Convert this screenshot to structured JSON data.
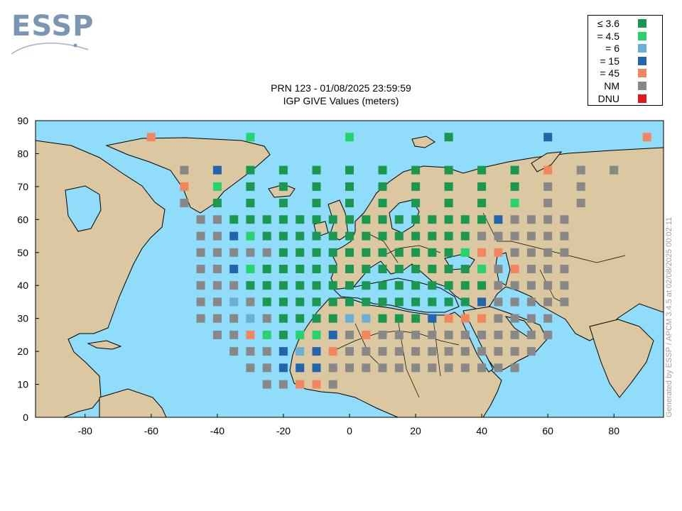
{
  "logo": {
    "text": "ESSP"
  },
  "title": {
    "line1": "PRN 123 - 01/08/2025 23:59:59",
    "line2": "IGP GIVE Values (meters)"
  },
  "credit": "Generated by ESSP / APCM 3.4.5 at 02/08/2025 00:02:11",
  "colors": {
    "ocean": "#8fdcfb",
    "land": "#dbc8a0",
    "border": "#000000"
  },
  "legend": [
    {
      "key": "A",
      "label": "≤ 3.6",
      "color": "#1a9850"
    },
    {
      "key": "B",
      "label": "= 4.5",
      "color": "#27d36d"
    },
    {
      "key": "C",
      "label": "= 6",
      "color": "#6baed6"
    },
    {
      "key": "D",
      "label": "= 15",
      "color": "#2166ac"
    },
    {
      "key": "E",
      "label": "= 45",
      "color": "#f4865e"
    },
    {
      "key": "N",
      "label": "NM",
      "color": "#888888"
    },
    {
      "key": "U",
      "label": "DNU",
      "color": "#e31a1c"
    }
  ],
  "map_data": {
    "lon_range": [
      -95,
      95
    ],
    "lat_range": [
      0,
      90
    ],
    "x_ticks": [
      -80,
      -60,
      -40,
      -20,
      0,
      20,
      40,
      60,
      80
    ],
    "y_ticks": [
      0,
      10,
      20,
      30,
      40,
      50,
      60,
      70,
      80,
      90
    ],
    "igps": [
      {
        "lat": 85,
        "cells": [
          [
            -60,
            "E"
          ],
          [
            -30,
            "B"
          ],
          [
            0,
            "B"
          ],
          [
            30,
            "A"
          ],
          [
            60,
            "D"
          ],
          [
            90,
            "E"
          ]
        ]
      },
      {
        "lat": 75,
        "cells": [
          [
            -50,
            "N"
          ],
          [
            -40,
            "D"
          ],
          [
            -30,
            "A"
          ],
          [
            -20,
            "A"
          ],
          [
            -10,
            "A"
          ],
          [
            0,
            "A"
          ],
          [
            10,
            "A"
          ],
          [
            20,
            "A"
          ],
          [
            30,
            "A"
          ],
          [
            40,
            "A"
          ],
          [
            50,
            "A"
          ],
          [
            60,
            "E"
          ],
          [
            70,
            "N"
          ],
          [
            80,
            "N"
          ]
        ]
      },
      {
        "lat": 70,
        "cells": [
          [
            -50,
            "E"
          ],
          [
            -40,
            "B"
          ],
          [
            -30,
            "A"
          ],
          [
            -20,
            "A"
          ],
          [
            -10,
            "A"
          ],
          [
            0,
            "A"
          ],
          [
            10,
            "A"
          ],
          [
            20,
            "A"
          ],
          [
            30,
            "A"
          ],
          [
            40,
            "A"
          ],
          [
            50,
            "A"
          ],
          [
            60,
            "N"
          ],
          [
            70,
            "N"
          ]
        ]
      },
      {
        "lat": 65,
        "cells": [
          [
            -50,
            "N"
          ],
          [
            -40,
            "A"
          ],
          [
            -30,
            "A"
          ],
          [
            -20,
            "A"
          ],
          [
            -10,
            "A"
          ],
          [
            0,
            "A"
          ],
          [
            10,
            "A"
          ],
          [
            20,
            "A"
          ],
          [
            30,
            "A"
          ],
          [
            40,
            "A"
          ],
          [
            50,
            "B"
          ],
          [
            60,
            "N"
          ],
          [
            70,
            "N"
          ]
        ]
      },
      {
        "lat": 60,
        "cells": [
          [
            -45,
            "N"
          ],
          [
            -40,
            "N"
          ],
          [
            -35,
            "A"
          ],
          [
            -30,
            "A"
          ],
          [
            -25,
            "A"
          ],
          [
            -20,
            "A"
          ],
          [
            -15,
            "A"
          ],
          [
            -10,
            "A"
          ],
          [
            -5,
            "A"
          ],
          [
            0,
            "A"
          ],
          [
            5,
            "A"
          ],
          [
            10,
            "A"
          ],
          [
            15,
            "A"
          ],
          [
            20,
            "A"
          ],
          [
            25,
            "A"
          ],
          [
            30,
            "A"
          ],
          [
            35,
            "A"
          ],
          [
            40,
            "A"
          ],
          [
            45,
            "D"
          ],
          [
            50,
            "N"
          ],
          [
            55,
            "N"
          ],
          [
            60,
            "N"
          ],
          [
            65,
            "N"
          ]
        ]
      },
      {
        "lat": 55,
        "cells": [
          [
            -45,
            "N"
          ],
          [
            -40,
            "N"
          ],
          [
            -35,
            "D"
          ],
          [
            -30,
            "B"
          ],
          [
            -25,
            "A"
          ],
          [
            -20,
            "A"
          ],
          [
            -15,
            "A"
          ],
          [
            -10,
            "A"
          ],
          [
            -5,
            "A"
          ],
          [
            0,
            "A"
          ],
          [
            5,
            "A"
          ],
          [
            10,
            "A"
          ],
          [
            15,
            "A"
          ],
          [
            20,
            "A"
          ],
          [
            25,
            "A"
          ],
          [
            30,
            "A"
          ],
          [
            35,
            "A"
          ],
          [
            40,
            "N"
          ],
          [
            45,
            "N"
          ],
          [
            50,
            "N"
          ],
          [
            55,
            "N"
          ],
          [
            60,
            "N"
          ],
          [
            65,
            "N"
          ]
        ]
      },
      {
        "lat": 50,
        "cells": [
          [
            -45,
            "N"
          ],
          [
            -40,
            "N"
          ],
          [
            -35,
            "N"
          ],
          [
            -30,
            "N"
          ],
          [
            -25,
            "N"
          ],
          [
            -20,
            "A"
          ],
          [
            -15,
            "A"
          ],
          [
            -10,
            "A"
          ],
          [
            -5,
            "A"
          ],
          [
            0,
            "A"
          ],
          [
            5,
            "A"
          ],
          [
            10,
            "A"
          ],
          [
            15,
            "A"
          ],
          [
            20,
            "A"
          ],
          [
            25,
            "A"
          ],
          [
            30,
            "A"
          ],
          [
            35,
            "B"
          ],
          [
            40,
            "E"
          ],
          [
            45,
            "E"
          ],
          [
            50,
            "N"
          ],
          [
            55,
            "N"
          ],
          [
            60,
            "N"
          ],
          [
            65,
            "N"
          ]
        ]
      },
      {
        "lat": 45,
        "cells": [
          [
            -45,
            "N"
          ],
          [
            -40,
            "N"
          ],
          [
            -35,
            "D"
          ],
          [
            -30,
            "B"
          ],
          [
            -25,
            "A"
          ],
          [
            -20,
            "A"
          ],
          [
            -15,
            "A"
          ],
          [
            -10,
            "A"
          ],
          [
            -5,
            "A"
          ],
          [
            0,
            "A"
          ],
          [
            5,
            "A"
          ],
          [
            10,
            "A"
          ],
          [
            15,
            "A"
          ],
          [
            20,
            "A"
          ],
          [
            25,
            "A"
          ],
          [
            30,
            "A"
          ],
          [
            35,
            "A"
          ],
          [
            40,
            "B"
          ],
          [
            45,
            "N"
          ],
          [
            50,
            "E"
          ],
          [
            55,
            "N"
          ],
          [
            60,
            "N"
          ],
          [
            65,
            "N"
          ]
        ]
      },
      {
        "lat": 40,
        "cells": [
          [
            -45,
            "N"
          ],
          [
            -40,
            "N"
          ],
          [
            -35,
            "N"
          ],
          [
            -30,
            "A"
          ],
          [
            -25,
            "A"
          ],
          [
            -20,
            "A"
          ],
          [
            -15,
            "A"
          ],
          [
            -10,
            "A"
          ],
          [
            -5,
            "A"
          ],
          [
            0,
            "A"
          ],
          [
            5,
            "A"
          ],
          [
            10,
            "A"
          ],
          [
            15,
            "A"
          ],
          [
            20,
            "A"
          ],
          [
            25,
            "A"
          ],
          [
            30,
            "A"
          ],
          [
            35,
            "A"
          ],
          [
            40,
            "A"
          ],
          [
            45,
            "N"
          ],
          [
            50,
            "N"
          ],
          [
            55,
            "N"
          ],
          [
            60,
            "N"
          ],
          [
            65,
            "N"
          ]
        ]
      },
      {
        "lat": 35,
        "cells": [
          [
            -45,
            "N"
          ],
          [
            -40,
            "N"
          ],
          [
            -35,
            "C"
          ],
          [
            -30,
            "N"
          ],
          [
            -25,
            "A"
          ],
          [
            -20,
            "A"
          ],
          [
            -15,
            "A"
          ],
          [
            -10,
            "A"
          ],
          [
            -5,
            "A"
          ],
          [
            0,
            "A"
          ],
          [
            5,
            "A"
          ],
          [
            10,
            "A"
          ],
          [
            15,
            "A"
          ],
          [
            20,
            "A"
          ],
          [
            25,
            "A"
          ],
          [
            30,
            "A"
          ],
          [
            35,
            "A"
          ],
          [
            40,
            "D"
          ],
          [
            45,
            "N"
          ],
          [
            50,
            "N"
          ],
          [
            55,
            "N"
          ],
          [
            60,
            "N"
          ],
          [
            65,
            "N"
          ]
        ]
      },
      {
        "lat": 30,
        "cells": [
          [
            -45,
            "N"
          ],
          [
            -40,
            "N"
          ],
          [
            -35,
            "N"
          ],
          [
            -30,
            "C"
          ],
          [
            -25,
            "N"
          ],
          [
            -20,
            "A"
          ],
          [
            -15,
            "A"
          ],
          [
            -10,
            "A"
          ],
          [
            -5,
            "A"
          ],
          [
            0,
            "C"
          ],
          [
            5,
            "C"
          ],
          [
            10,
            "A"
          ],
          [
            15,
            "A"
          ],
          [
            20,
            "A"
          ],
          [
            25,
            "D"
          ],
          [
            30,
            "E"
          ],
          [
            35,
            "E"
          ],
          [
            40,
            "E"
          ],
          [
            45,
            "N"
          ],
          [
            50,
            "N"
          ],
          [
            55,
            "N"
          ],
          [
            60,
            "N"
          ]
        ]
      },
      {
        "lat": 25,
        "cells": [
          [
            -40,
            "N"
          ],
          [
            -35,
            "N"
          ],
          [
            -30,
            "E"
          ],
          [
            -25,
            "B"
          ],
          [
            -20,
            "A"
          ],
          [
            -15,
            "B"
          ],
          [
            -10,
            "B"
          ],
          [
            -5,
            "D"
          ],
          [
            0,
            "N"
          ],
          [
            5,
            "E"
          ],
          [
            10,
            "N"
          ],
          [
            15,
            "N"
          ],
          [
            20,
            "N"
          ],
          [
            25,
            "N"
          ],
          [
            30,
            "N"
          ],
          [
            35,
            "N"
          ],
          [
            40,
            "N"
          ],
          [
            45,
            "N"
          ],
          [
            50,
            "N"
          ],
          [
            55,
            "N"
          ],
          [
            60,
            "N"
          ]
        ]
      },
      {
        "lat": 20,
        "cells": [
          [
            -35,
            "N"
          ],
          [
            -30,
            "N"
          ],
          [
            -25,
            "N"
          ],
          [
            -20,
            "D"
          ],
          [
            -15,
            "C"
          ],
          [
            -10,
            "D"
          ],
          [
            -5,
            "E"
          ],
          [
            0,
            "N"
          ],
          [
            5,
            "N"
          ],
          [
            10,
            "N"
          ],
          [
            15,
            "N"
          ],
          [
            20,
            "N"
          ],
          [
            25,
            "N"
          ],
          [
            30,
            "N"
          ],
          [
            35,
            "N"
          ],
          [
            40,
            "N"
          ],
          [
            45,
            "N"
          ],
          [
            50,
            "N"
          ],
          [
            55,
            "N"
          ]
        ]
      },
      {
        "lat": 15,
        "cells": [
          [
            -30,
            "N"
          ],
          [
            -25,
            "N"
          ],
          [
            -20,
            "D"
          ],
          [
            -15,
            "D"
          ],
          [
            -10,
            "D"
          ],
          [
            -5,
            "N"
          ],
          [
            0,
            "N"
          ],
          [
            5,
            "N"
          ],
          [
            10,
            "N"
          ],
          [
            15,
            "N"
          ],
          [
            20,
            "N"
          ],
          [
            25,
            "N"
          ],
          [
            30,
            "N"
          ],
          [
            35,
            "N"
          ],
          [
            40,
            "N"
          ],
          [
            45,
            "N"
          ],
          [
            50,
            "N"
          ]
        ]
      },
      {
        "lat": 10,
        "cells": [
          [
            -25,
            "N"
          ],
          [
            -20,
            "N"
          ],
          [
            -15,
            "E"
          ],
          [
            -10,
            "E"
          ],
          [
            -5,
            "N"
          ]
        ]
      }
    ]
  }
}
